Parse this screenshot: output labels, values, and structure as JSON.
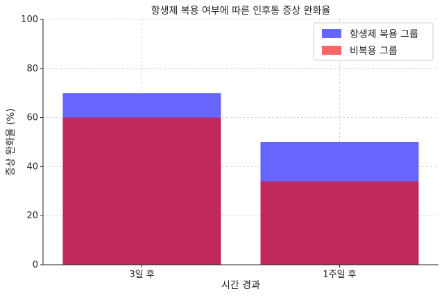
{
  "chart_data": {
    "type": "bar",
    "title": "항생제 복용 여부에 따른 인후통 증상 완화율",
    "xlabel": "시간 경과",
    "ylabel": "증상 완화율 (%)",
    "categories": [
      "3일 후",
      "1주일 후"
    ],
    "ylim": [
      0,
      100
    ],
    "yticks": [
      0,
      20,
      40,
      60,
      80,
      100
    ],
    "grid": true,
    "legend_position": "top-right",
    "overlapping": true,
    "series": [
      {
        "name": "항생제 복용 그룹",
        "values": [
          70,
          50
        ],
        "color": "#6666ff"
      },
      {
        "name": "비복용 그룹",
        "values": [
          60,
          34
        ],
        "color": "#ff6666",
        "blended_color": "#c0285e"
      }
    ]
  }
}
